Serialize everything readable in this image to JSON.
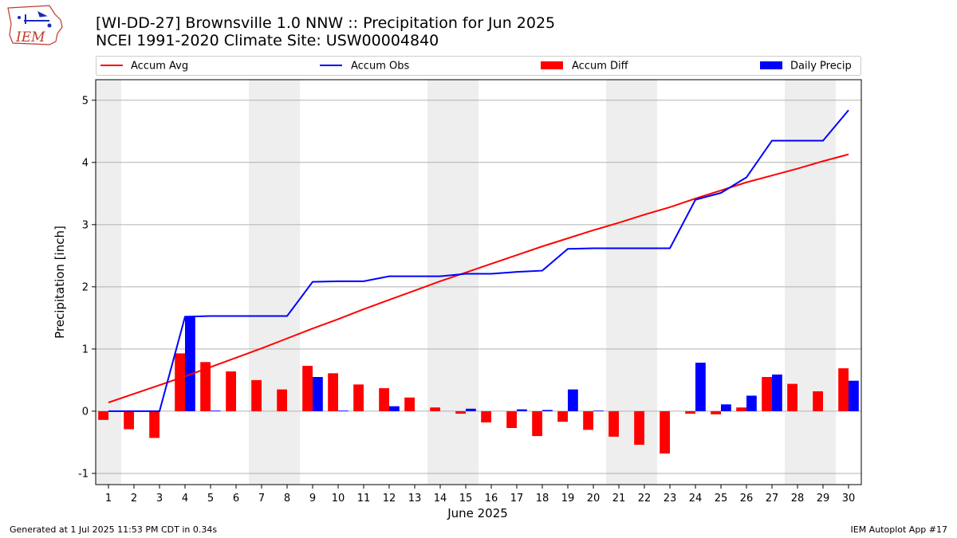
{
  "header": {
    "title": "[WI-DD-27] Brownsville 1.0 NNW :: Precipitation for Jun 2025",
    "subtitle": "NCEI 1991-2020 Climate Site: USW00004840",
    "logo_text": "IEM"
  },
  "footer": {
    "left": "Generated at 1 Jul 2025 11:53 PM CDT in 0.34s",
    "right": "IEM Autoplot App #17"
  },
  "colors": {
    "avg": "#ff0000",
    "obs": "#0000ff",
    "diff": "#ff0000",
    "daily": "#0000ff",
    "weekend_shade": "#eeeeee",
    "grid": "#b0b0b0"
  },
  "chart_data": {
    "type": "bar",
    "xlabel": "June 2025",
    "ylabel": "Precipitation [inch]",
    "xlim": [
      0.5,
      30.5
    ],
    "ylim": [
      -1.18,
      5.33
    ],
    "yticks": [
      -1,
      0,
      1,
      2,
      3,
      4,
      5
    ],
    "grid": true,
    "legend_position": "top",
    "weekend_days": [
      1,
      7,
      8,
      14,
      15,
      21,
      22,
      28,
      29
    ],
    "categories": [
      "1",
      "2",
      "3",
      "4",
      "5",
      "6",
      "7",
      "8",
      "9",
      "10",
      "11",
      "12",
      "13",
      "14",
      "15",
      "16",
      "17",
      "18",
      "19",
      "20",
      "21",
      "22",
      "23",
      "24",
      "25",
      "26",
      "27",
      "28",
      "29",
      "30"
    ],
    "series": [
      {
        "name": "Accum Avg",
        "kind": "line",
        "values": [
          0.14,
          0.28,
          0.42,
          0.56,
          0.71,
          0.86,
          1.01,
          1.17,
          1.33,
          1.48,
          1.64,
          1.79,
          1.94,
          2.09,
          2.23,
          2.37,
          2.51,
          2.65,
          2.78,
          2.91,
          3.03,
          3.16,
          3.28,
          3.42,
          3.55,
          3.68,
          3.79,
          3.9,
          4.02,
          4.13
        ]
      },
      {
        "name": "Accum Obs",
        "kind": "line",
        "values": [
          0.0,
          0.0,
          0.0,
          1.52,
          1.53,
          1.53,
          1.53,
          1.53,
          2.08,
          2.09,
          2.09,
          2.17,
          2.17,
          2.17,
          2.21,
          2.21,
          2.24,
          2.26,
          2.61,
          2.62,
          2.62,
          2.62,
          2.62,
          3.4,
          3.51,
          3.76,
          4.35,
          4.35,
          4.35,
          4.84
        ]
      },
      {
        "name": "Accum Diff",
        "kind": "bar",
        "values": [
          -0.14,
          -0.29,
          -0.43,
          0.93,
          0.79,
          0.64,
          0.5,
          0.35,
          0.73,
          0.61,
          0.43,
          0.37,
          0.22,
          0.06,
          -0.04,
          -0.18,
          -0.27,
          -0.4,
          -0.17,
          -0.3,
          -0.41,
          -0.54,
          -0.68,
          -0.04,
          -0.05,
          0.06,
          0.55,
          0.44,
          0.32,
          0.69
        ]
      },
      {
        "name": "Daily Precip",
        "kind": "bar",
        "values": [
          0.0,
          0.0,
          0.0,
          1.52,
          0.01,
          0.0,
          0.0,
          0.0,
          0.55,
          0.01,
          0.0,
          0.08,
          0.0,
          0.0,
          0.04,
          0.0,
          0.03,
          0.02,
          0.35,
          0.01,
          0.0,
          0.0,
          0.0,
          0.78,
          0.11,
          0.25,
          0.59,
          0.0,
          0.0,
          0.49
        ]
      }
    ]
  }
}
